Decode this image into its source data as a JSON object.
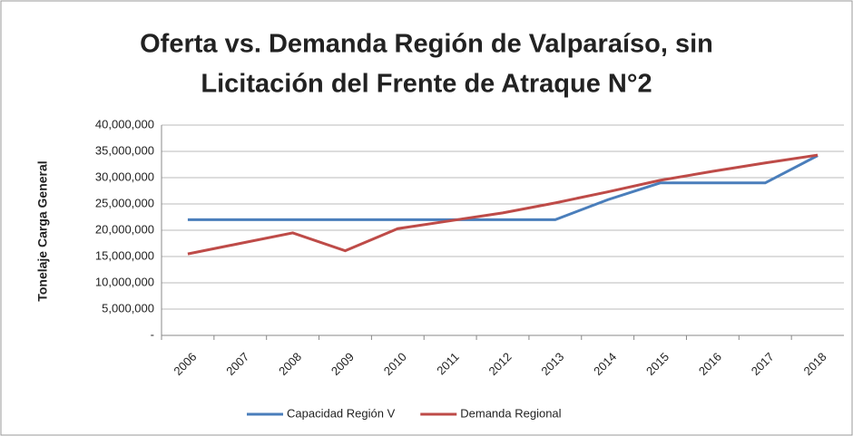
{
  "chart_data": {
    "type": "line",
    "title": [
      "Oferta vs. Demanda Región de Valparaíso, sin",
      "Licitación del Frente de Atraque N°2"
    ],
    "y_label": "Tonelaje Carga General",
    "categories": [
      "2006",
      "2007",
      "2008",
      "2009",
      "2010",
      "2011",
      "2012",
      "2013",
      "2014",
      "2015",
      "2016",
      "2017",
      "2018"
    ],
    "series": [
      {
        "name": "Capacidad Región V",
        "color": "#4a7ebb",
        "values": [
          22000000,
          22000000,
          22000000,
          22000000,
          22000000,
          22000000,
          22000000,
          22000000,
          25800000,
          29000000,
          29000000,
          29000000,
          34200000
        ]
      },
      {
        "name": "Demanda Regional",
        "color": "#be4b48",
        "values": [
          15500000,
          17500000,
          19500000,
          16100000,
          20300000,
          21800000,
          23300000,
          25200000,
          27300000,
          29500000,
          31200000,
          32800000,
          34300000
        ]
      }
    ],
    "ylim": [
      0,
      40000000
    ],
    "yticks": [
      {
        "value": 0,
        "label": "-"
      },
      {
        "value": 5000000,
        "label": "5,000,000"
      },
      {
        "value": 10000000,
        "label": "10,000,000"
      },
      {
        "value": 15000000,
        "label": "15,000,000"
      },
      {
        "value": 20000000,
        "label": "20,000,000"
      },
      {
        "value": 25000000,
        "label": "25,000,000"
      },
      {
        "value": 30000000,
        "label": "30,000,000"
      },
      {
        "value": 35000000,
        "label": "35,000,000"
      },
      {
        "value": 40000000,
        "label": "40,000,000"
      }
    ],
    "grid": true,
    "legend": "bottom"
  }
}
